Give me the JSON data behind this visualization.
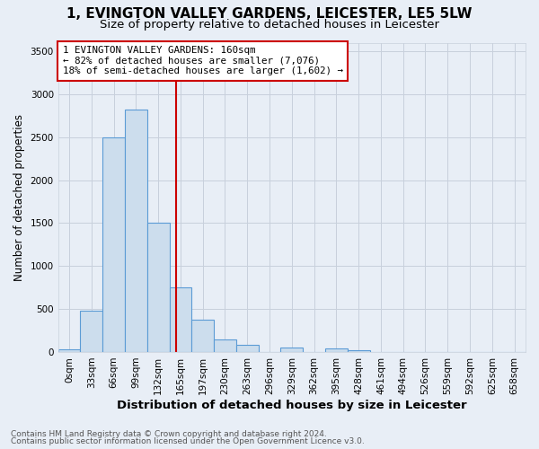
{
  "title": "1, EVINGTON VALLEY GARDENS, LEICESTER, LE5 5LW",
  "subtitle": "Size of property relative to detached houses in Leicester",
  "xlabel": "Distribution of detached houses by size in Leicester",
  "ylabel": "Number of detached properties",
  "footer_line1": "Contains HM Land Registry data © Crown copyright and database right 2024.",
  "footer_line2": "Contains public sector information licensed under the Open Government Licence v3.0.",
  "bin_labels": [
    "0sqm",
    "33sqm",
    "66sqm",
    "99sqm",
    "132sqm",
    "165sqm",
    "197sqm",
    "230sqm",
    "263sqm",
    "296sqm",
    "329sqm",
    "362sqm",
    "395sqm",
    "428sqm",
    "461sqm",
    "494sqm",
    "526sqm",
    "559sqm",
    "592sqm",
    "625sqm",
    "658sqm"
  ],
  "bar_values": [
    30,
    480,
    2500,
    2820,
    1500,
    750,
    380,
    145,
    80,
    0,
    50,
    0,
    45,
    25,
    0,
    0,
    0,
    0,
    0,
    0,
    0
  ],
  "bar_color": "#ccdded",
  "bar_edgecolor": "#5b9bd5",
  "vline_x": 4.82,
  "vline_color": "#cc0000",
  "annotation_text": "1 EVINGTON VALLEY GARDENS: 160sqm\n← 82% of detached houses are smaller (7,076)\n18% of semi-detached houses are larger (1,602) →",
  "annotation_box_color": "#ffffff",
  "annotation_box_edgecolor": "#cc0000",
  "ylim": [
    0,
    3600
  ],
  "yticks": [
    0,
    500,
    1000,
    1500,
    2000,
    2500,
    3000,
    3500
  ],
  "grid_color": "#c8d0dc",
  "bg_color": "#e8eef6",
  "title_fontsize": 11,
  "subtitle_fontsize": 9.5,
  "xlabel_fontsize": 9.5,
  "ylabel_fontsize": 8.5,
  "tick_fontsize": 7.5,
  "annotation_fontsize": 7.8,
  "footer_fontsize": 6.5
}
